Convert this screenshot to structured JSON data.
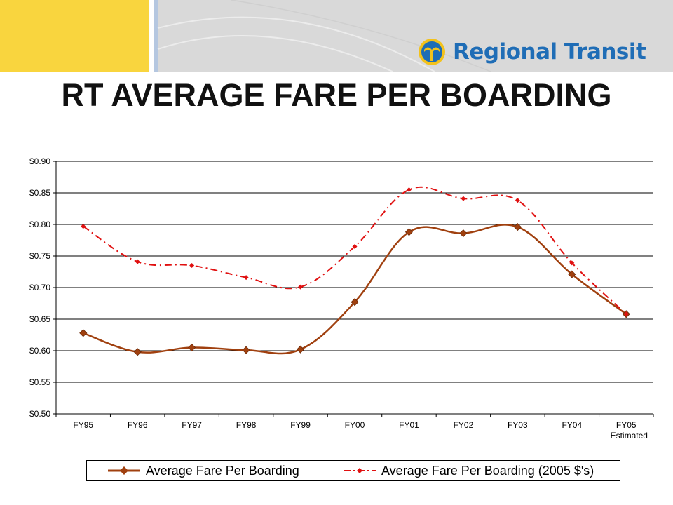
{
  "header": {
    "logo_text": "Regional Transit",
    "title": "RT AVERAGE FARE PER BOARDING"
  },
  "colors": {
    "yellow": "#f9d53e",
    "header_gray": "#d9d9d9",
    "logo_blue": "#1f6db6",
    "series_solid": "#a0400f",
    "series_dashed": "#e01010"
  },
  "legend": {
    "series_solid": "Average Fare Per Boarding",
    "series_dashed": "Average Fare Per Boarding (2005 $'s)"
  },
  "chart_data": {
    "type": "line",
    "categories": [
      "FY95",
      "FY96",
      "FY97",
      "FY98",
      "FY99",
      "FY00",
      "FY01",
      "FY02",
      "FY03",
      "FY04",
      "FY05"
    ],
    "category_sublabels": [
      "",
      "",
      "",
      "",
      "",
      "",
      "",
      "",
      "",
      "",
      "Estimated"
    ],
    "series": [
      {
        "name": "Average Fare Per Boarding",
        "values": [
          0.628,
          0.598,
          0.605,
          0.601,
          0.602,
          0.677,
          0.788,
          0.786,
          0.796,
          0.721,
          0.658
        ],
        "style": "solid",
        "color": "#a0400f"
      },
      {
        "name": "Average Fare Per Boarding (2005 $'s)",
        "values": [
          0.797,
          0.741,
          0.735,
          0.716,
          0.701,
          0.765,
          0.855,
          0.841,
          0.838,
          0.739,
          0.658
        ],
        "style": "dash-dot",
        "color": "#e01010"
      }
    ],
    "y_ticks": [
      "$0.90",
      "$0.85",
      "$0.80",
      "$0.75",
      "$0.70",
      "$0.65",
      "$0.60",
      "$0.55",
      "$0.50"
    ],
    "ylim": [
      0.5,
      0.9
    ],
    "grid": true,
    "legend_position": "bottom"
  }
}
